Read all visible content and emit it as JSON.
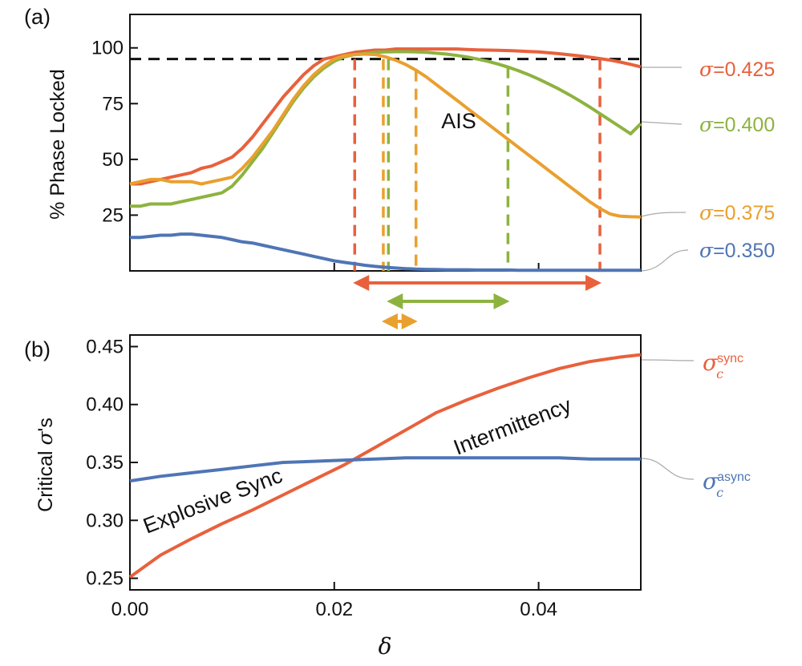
{
  "chart_data": [
    {
      "panel": "(a)",
      "type": "line",
      "title": "",
      "xlabel": "",
      "ylabel": "% Phase Locked",
      "xlim": [
        0,
        0.05
      ],
      "ylim": [
        0,
        115
      ],
      "yticks": [
        "25",
        "50",
        "75",
        "100"
      ],
      "threshold": 95,
      "region_label": "AIS",
      "x": [
        0,
        0.001,
        0.002,
        0.003,
        0.004,
        0.005,
        0.006,
        0.007,
        0.008,
        0.009,
        0.01,
        0.011,
        0.012,
        0.013,
        0.014,
        0.015,
        0.016,
        0.017,
        0.018,
        0.019,
        0.02,
        0.021,
        0.022,
        0.023,
        0.024,
        0.025,
        0.026,
        0.027,
        0.028,
        0.029,
        0.03,
        0.031,
        0.032,
        0.033,
        0.034,
        0.035,
        0.036,
        0.037,
        0.038,
        0.039,
        0.04,
        0.041,
        0.042,
        0.043,
        0.044,
        0.045,
        0.046,
        0.047,
        0.048,
        0.049,
        0.05
      ],
      "series": [
        {
          "name": "σ=0.425",
          "color": "#e8613c",
          "values": [
            39,
            39,
            40,
            41,
            42,
            43,
            44,
            46,
            47,
            49,
            51,
            55,
            60,
            66,
            72,
            78,
            83,
            88,
            92,
            95,
            96,
            97,
            98,
            98.5,
            99,
            99,
            99.5,
            99.5,
            99.5,
            99.5,
            99.5,
            99.5,
            99.5,
            99.3,
            99.1,
            99,
            98.9,
            98.8,
            98.6,
            98.4,
            98.2,
            97.8,
            97.4,
            96.9,
            96.4,
            95.8,
            95.2,
            94.5,
            93.6,
            92.6,
            91.5
          ],
          "stability_window": [
            0.022,
            0.046
          ]
        },
        {
          "name": "σ=0.400",
          "color": "#8db33f",
          "values": [
            29,
            29,
            30,
            30,
            30,
            31,
            32,
            33,
            34,
            35,
            38,
            43,
            49,
            55,
            62,
            69,
            76,
            82,
            87,
            91,
            94,
            96,
            97,
            97.5,
            98,
            98.2,
            98.3,
            98.3,
            98.2,
            98,
            97.6,
            97.2,
            96.6,
            95.9,
            95,
            94,
            92.8,
            91.4,
            89.8,
            88,
            86,
            83.8,
            81.5,
            79,
            76.3,
            73.5,
            70.5,
            67.5,
            64.5,
            61.5,
            66
          ],
          "stability_window": [
            0.0253,
            0.037
          ]
        },
        {
          "name": "σ=0.375",
          "color": "#e9a02f",
          "values": [
            39,
            40,
            41,
            41,
            40,
            40,
            40,
            39,
            40,
            41,
            42,
            46,
            51,
            57,
            63,
            70,
            77,
            83,
            88,
            92,
            95,
            96.5,
            97,
            97.2,
            97,
            96,
            94.5,
            92.5,
            90,
            87,
            83.5,
            80,
            76.5,
            73,
            69.5,
            66,
            62.5,
            59,
            55.5,
            52,
            48.5,
            45,
            41.5,
            38,
            34.5,
            31,
            28,
            25.5,
            24.5,
            24.3,
            24.2
          ],
          "stability_window": [
            0.0248,
            0.028
          ]
        },
        {
          "name": "σ=0.350",
          "color": "#4f75b5",
          "values": [
            15,
            15,
            15.5,
            16,
            16,
            16.5,
            16.5,
            16,
            15.5,
            15,
            14,
            13,
            12.5,
            11.5,
            10.5,
            9.5,
            8.5,
            7.5,
            6.5,
            5.5,
            4.5,
            3.8,
            3.2,
            2.5,
            2,
            1.6,
            1.3,
            1,
            0.8,
            0.7,
            0.6,
            0.5,
            0.5,
            0.5,
            0.4,
            0.4,
            0.4,
            0.4,
            0.3,
            0.3,
            0.3,
            0.3,
            0.3,
            0.3,
            0.3,
            0.3,
            0.3,
            0.3,
            0.3,
            0.3,
            0.3
          ]
        }
      ]
    },
    {
      "panel": "(b)",
      "type": "line",
      "title": "",
      "xlabel": "δ",
      "ylabel": "Critical σ's",
      "xlim": [
        0,
        0.05
      ],
      "ylim": [
        0.24,
        0.46
      ],
      "xticks": [
        "0.00",
        "0.02",
        "0.04"
      ],
      "yticks": [
        "0.25",
        "0.30",
        "0.35",
        "0.40",
        "0.45"
      ],
      "annotations": [
        "Explosive Sync",
        "Intermittency"
      ],
      "x": [
        0,
        0.003,
        0.006,
        0.009,
        0.012,
        0.015,
        0.018,
        0.021,
        0.024,
        0.027,
        0.03,
        0.033,
        0.036,
        0.039,
        0.042,
        0.045,
        0.048,
        0.05
      ],
      "series": [
        {
          "name": "σ_c^sync",
          "color": "#e8613c",
          "values": [
            0.251,
            0.27,
            0.284,
            0.297,
            0.309,
            0.322,
            0.335,
            0.348,
            0.363,
            0.378,
            0.393,
            0.404,
            0.414,
            0.423,
            0.431,
            0.437,
            0.441,
            0.443
          ]
        },
        {
          "name": "σ_c^async",
          "color": "#4f75b5",
          "values": [
            0.334,
            0.338,
            0.341,
            0.344,
            0.347,
            0.35,
            0.351,
            0.352,
            0.353,
            0.354,
            0.354,
            0.354,
            0.354,
            0.354,
            0.354,
            0.353,
            0.353,
            0.353
          ]
        }
      ]
    }
  ],
  "labels": {
    "panel_a": "(a)",
    "panel_b": "(b)",
    "ylabel_a": "% Phase Locked",
    "ylabel_b_prefix": "Critical ",
    "ylabel_b_sym": "σ",
    "ylabel_b_suffix": "'s",
    "xlabel_b": "δ",
    "ais": "AIS",
    "explosive": "Explosive Sync",
    "intermittency": "Intermittency",
    "sigma": "σ",
    "sigma_vals": [
      "=0.425",
      "=0.400",
      "=0.375",
      "=0.350"
    ],
    "c_sub": "c",
    "sync_sup": "sync",
    "async_sup": "async"
  }
}
